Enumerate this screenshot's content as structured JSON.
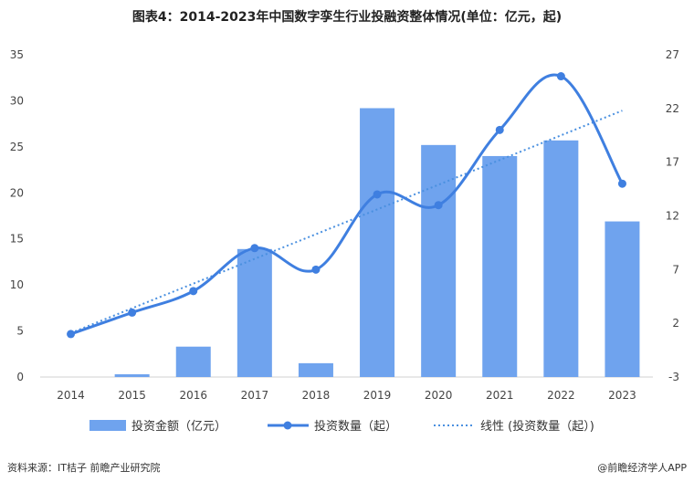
{
  "title": "图表4：2014-2023年中国数字孪生行业投融资整体情况(单位：亿元，起)",
  "source": "资料来源：IT桔子 前瞻产业研究院",
  "brand": "@前瞻经济学人APP",
  "colors": {
    "bar": "#6fa3ee",
    "line": "#3f7fe0",
    "trend": "#4a90e0"
  },
  "chart_data": {
    "type": "bar+line",
    "categories": [
      "2014",
      "2015",
      "2016",
      "2017",
      "2018",
      "2019",
      "2020",
      "2021",
      "2022",
      "2023"
    ],
    "series": [
      {
        "name": "投资金额（亿元）",
        "type": "bar",
        "axis": "left",
        "values": [
          0,
          0.3,
          3.3,
          13.9,
          1.5,
          29.2,
          25.2,
          24.0,
          25.7,
          16.9
        ]
      },
      {
        "name": "投资数量（起）",
        "type": "line",
        "axis": "right",
        "values": [
          1,
          3,
          5,
          9,
          7,
          14,
          13,
          20,
          25,
          15
        ]
      },
      {
        "name": "线性 (投资数量（起）)",
        "type": "trend",
        "axis": "right",
        "values": [
          1.1,
          3.4,
          5.7,
          8.0,
          10.3,
          12.6,
          14.9,
          17.2,
          19.5,
          21.8
        ]
      }
    ],
    "y_left": {
      "min": 0,
      "max": 35,
      "ticks": [
        "0",
        "5",
        "10",
        "15",
        "20",
        "25",
        "30",
        "35"
      ]
    },
    "y_right": {
      "min": -3,
      "max": 27,
      "ticks": [
        "-3",
        "2",
        "7",
        "12",
        "17",
        "22",
        "27"
      ]
    },
    "legend_position": "bottom"
  }
}
